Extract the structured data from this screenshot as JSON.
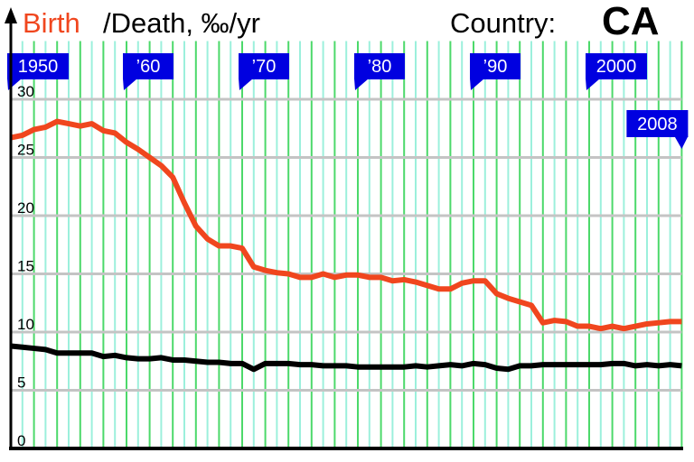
{
  "chart_data": {
    "type": "line",
    "title_parts": [
      "Birth",
      "/Death, ‰/yr",
      "Country:",
      "CA"
    ],
    "x": [
      1950,
      1951,
      1952,
      1953,
      1954,
      1955,
      1956,
      1957,
      1958,
      1959,
      1960,
      1961,
      1962,
      1963,
      1964,
      1965,
      1966,
      1967,
      1968,
      1969,
      1970,
      1971,
      1972,
      1973,
      1974,
      1975,
      1976,
      1977,
      1978,
      1979,
      1980,
      1981,
      1982,
      1983,
      1984,
      1985,
      1986,
      1987,
      1988,
      1989,
      1990,
      1991,
      1992,
      1993,
      1994,
      1995,
      1996,
      1997,
      1998,
      1999,
      2000,
      2001,
      2002,
      2003,
      2004,
      2005,
      2006,
      2007,
      2008
    ],
    "series": [
      {
        "name": "Birth",
        "color": "#f0461e",
        "values": [
          26.7,
          26.9,
          27.4,
          27.6,
          28.1,
          27.9,
          27.7,
          27.9,
          27.3,
          27.1,
          26.3,
          25.7,
          25.0,
          24.3,
          23.3,
          21.1,
          19.1,
          18.0,
          17.4,
          17.4,
          17.2,
          15.6,
          15.3,
          15.1,
          15.0,
          14.7,
          14.7,
          15.0,
          14.7,
          14.9,
          14.9,
          14.7,
          14.7,
          14.4,
          14.5,
          14.3,
          14.0,
          13.7,
          13.7,
          14.2,
          14.4,
          14.4,
          13.3,
          12.9,
          12.6,
          12.3,
          10.8,
          11.0,
          10.9,
          10.5,
          10.5,
          10.3,
          10.5,
          10.3,
          10.5,
          10.7,
          10.8,
          10.9,
          10.9
        ]
      },
      {
        "name": "/Death, ‰/yr",
        "color": "#000000",
        "values": [
          8.8,
          8.7,
          8.6,
          8.5,
          8.2,
          8.2,
          8.2,
          8.2,
          7.9,
          8.0,
          7.8,
          7.7,
          7.7,
          7.8,
          7.6,
          7.6,
          7.5,
          7.4,
          7.4,
          7.3,
          7.3,
          6.8,
          7.3,
          7.3,
          7.3,
          7.2,
          7.2,
          7.1,
          7.1,
          7.1,
          7.0,
          7.0,
          7.0,
          7.0,
          7.0,
          7.1,
          7.0,
          7.1,
          7.2,
          7.1,
          7.3,
          7.2,
          6.9,
          6.8,
          7.1,
          7.1,
          7.2,
          7.2,
          7.2,
          7.2,
          7.2,
          7.2,
          7.3,
          7.3,
          7.1,
          7.2,
          7.1,
          7.2,
          7.1
        ]
      }
    ],
    "xlim": [
      1950,
      2008
    ],
    "xticks": [
      {
        "value": 1950,
        "label": "1950"
      },
      {
        "value": 1960,
        "label": "’60"
      },
      {
        "value": 1970,
        "label": "’70"
      },
      {
        "value": 1980,
        "label": "’80"
      },
      {
        "value": 1990,
        "label": "’90"
      },
      {
        "value": 2000,
        "label": "2000"
      },
      {
        "value": 2008,
        "label": "2008"
      }
    ],
    "ylim": [
      0,
      35
    ],
    "yticks": [
      0,
      5,
      10,
      15,
      20,
      25,
      30
    ],
    "grid": true,
    "flag_color": "#0000e0"
  }
}
